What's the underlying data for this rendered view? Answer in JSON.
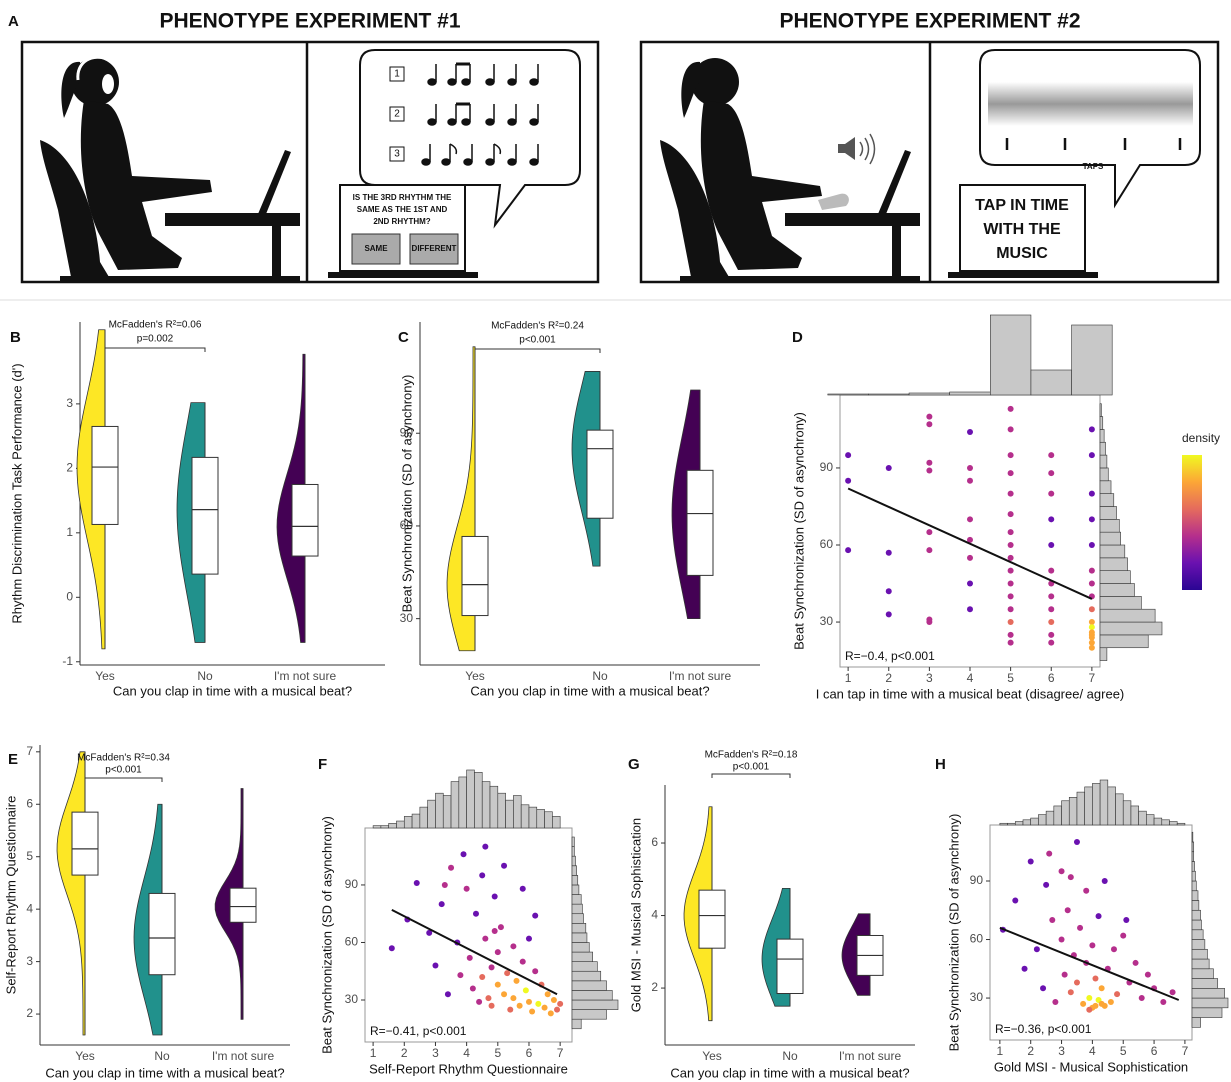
{
  "panel_a": {
    "panel": "A",
    "experiment_1": {
      "title": "PHENOTYPE EXPERIMENT #1",
      "rhythm_numbers": [
        "1",
        "2",
        "3"
      ],
      "question": [
        "IS THE 3RD RHYTHM THE",
        "SAME AS THE 1ST AND",
        "2ND RHYTHM?"
      ],
      "buttons": [
        "SAME",
        "DIFFERENT"
      ]
    },
    "experiment_2": {
      "title": "PHENOTYPE EXPERIMENT #2",
      "taps_label": "TAPS",
      "instruction": [
        "TAP IN TIME",
        "WITH THE",
        "MUSIC"
      ]
    }
  },
  "chart_data": [
    {
      "type": "raincloud",
      "panel": "B",
      "categories": [
        "Yes",
        "No",
        "I'm not sure"
      ],
      "colors": [
        "#fde725",
        "#21918c",
        "#440154"
      ],
      "ylabel": "Rhythm Discrimination Task Performance (d')",
      "xlabel": "Can you clap in time with a musical beat?",
      "annotations": [
        "McFadden's R²=0.06",
        "p=0.002"
      ],
      "ylim": [
        -1.05,
        4.27
      ],
      "yticks": [
        -1,
        0,
        1,
        2,
        3
      ],
      "boxes": [
        {
          "min": -0.8,
          "q1": 1.13,
          "median": 2.02,
          "q3": 2.65,
          "max": 4.15
        },
        {
          "min": -0.7,
          "q1": 0.36,
          "median": 1.36,
          "q3": 2.17,
          "max": 3.02
        },
        {
          "min": -0.7,
          "q1": 0.64,
          "median": 1.1,
          "q3": 1.75,
          "max": 3.77
        }
      ]
    },
    {
      "type": "raincloud",
      "panel": "C",
      "categories": [
        "Yes",
        "No",
        "I'm not sure"
      ],
      "colors": [
        "#fde725",
        "#21918c",
        "#440154"
      ],
      "ylabel": "Beat Synchronization (SD of asynchrony)",
      "xlabel": "Can you clap in time with a musical beat?",
      "annotations": [
        "McFadden's R²=0.24",
        "p<0.001"
      ],
      "ylim": [
        15,
        126
      ],
      "yticks": [
        30,
        60,
        90
      ],
      "boxes": [
        {
          "min": 19.6,
          "q1": 31,
          "median": 41,
          "q3": 56.6,
          "max": 118
        },
        {
          "min": 47,
          "q1": 62.5,
          "median": 85,
          "q3": 91,
          "max": 110
        },
        {
          "min": 30,
          "q1": 44,
          "median": 64,
          "q3": 78,
          "max": 104
        }
      ]
    },
    {
      "type": "scatter",
      "panel": "D",
      "ylabel": "Beat Synchronization (SD of asynchrony)",
      "xlabel": "I can tap in time with a musical beat (disagree/ agree)",
      "annotation": "R=−0.4, p<0.001",
      "legend_title": "density",
      "color_scale": [
        "#2a0593",
        "#6a11b0",
        "#b52f8c",
        "#e56b5d",
        "#fca636",
        "#f0f921"
      ],
      "xlim": [
        0.8,
        7.2
      ],
      "xticks": [
        1,
        2,
        3,
        4,
        5,
        6,
        7
      ],
      "ylim": [
        12.5,
        118.4
      ],
      "yticks": [
        30,
        60,
        90
      ],
      "x": [
        1,
        1,
        1,
        2,
        2,
        2,
        2,
        3,
        3,
        3,
        3,
        3,
        3,
        3,
        3,
        4,
        4,
        4,
        4,
        4,
        4,
        4,
        4,
        5,
        5,
        5,
        5,
        5,
        5,
        5,
        5,
        5,
        5,
        5,
        5,
        5,
        5,
        5,
        5,
        6,
        6,
        6,
        6,
        6,
        6,
        6,
        6,
        6,
        6,
        6,
        6,
        7,
        7,
        7,
        7,
        7,
        7,
        7,
        7,
        7,
        7,
        7,
        7,
        7,
        7,
        7,
        7
      ],
      "values": [
        95,
        85,
        58,
        90,
        57,
        42,
        33,
        110,
        107,
        92,
        89,
        65,
        58,
        31,
        30,
        104,
        90,
        85,
        70,
        62,
        55,
        45,
        35,
        113,
        105,
        95,
        88,
        80,
        72,
        65,
        60,
        55,
        50,
        45,
        40,
        35,
        30,
        25,
        22,
        95,
        88,
        80,
        70,
        60,
        50,
        45,
        40,
        35,
        30,
        25,
        22,
        105,
        95,
        80,
        70,
        60,
        50,
        45,
        40,
        35,
        30,
        28,
        26,
        25,
        24,
        22,
        20
      ],
      "fit": {
        "x": [
          1,
          7
        ],
        "y": [
          82,
          39
        ]
      },
      "x_hist": {
        "bins": [
          0.5,
          1.5,
          2.5,
          3.5,
          4.5,
          5.5,
          6.5,
          7.5
        ],
        "counts": [
          1,
          1,
          2,
          3,
          80,
          25,
          70
        ]
      },
      "y_hist": {
        "bins": [
          15,
          20,
          25,
          30,
          35,
          40,
          45,
          50,
          55,
          60,
          65,
          70,
          75,
          80,
          85,
          90,
          95,
          100,
          105,
          110,
          115
        ],
        "counts": [
          5,
          35,
          45,
          40,
          30,
          25,
          22,
          20,
          18,
          15,
          14,
          12,
          10,
          8,
          6,
          5,
          4,
          3,
          2,
          1
        ]
      }
    },
    {
      "type": "raincloud",
      "panel": "E",
      "categories": [
        "Yes",
        "No",
        "I'm not sure"
      ],
      "colors": [
        "#fde725",
        "#21918c",
        "#440154"
      ],
      "ylabel": "Self-Report Rhythm Questionnaire",
      "xlabel": "Can you clap in time with a musical beat?",
      "annotations": [
        "McFadden's R²=0.34",
        "p<0.001"
      ],
      "ylim": [
        1.41,
        7.13
      ],
      "yticks": [
        2,
        3,
        4,
        5,
        6,
        7
      ],
      "boxes": [
        {
          "min": 1.6,
          "q1": 4.65,
          "median": 5.15,
          "q3": 5.85,
          "max": 7.0
        },
        {
          "min": 1.6,
          "q1": 2.75,
          "median": 3.45,
          "q3": 4.3,
          "max": 6.0
        },
        {
          "min": 1.9,
          "q1": 3.75,
          "median": 4.05,
          "q3": 4.4,
          "max": 6.3
        }
      ]
    },
    {
      "type": "scatter",
      "panel": "F",
      "ylabel": "Beat Synchronization (SD of asynchrony)",
      "xlabel": "Self-Report Rhythm Questionnaire",
      "annotation": "R=−0.41, p<0.001",
      "color_scale": [
        "#2a0593",
        "#6a11b0",
        "#b52f8c",
        "#e56b5d",
        "#fca636",
        "#f0f921"
      ],
      "xlim": [
        0.74,
        7.38
      ],
      "xticks": [
        1,
        2,
        3,
        4,
        5,
        6,
        7
      ],
      "ylim": [
        8.1,
        119.7
      ],
      "yticks": [
        30,
        60,
        90
      ],
      "x": [
        1.6,
        2.1,
        2.4,
        2.8,
        3.0,
        3.2,
        3.4,
        3.5,
        3.7,
        3.8,
        3.9,
        4.0,
        4.1,
        4.2,
        4.3,
        4.4,
        4.5,
        4.5,
        4.6,
        4.7,
        4.8,
        4.8,
        4.9,
        5.0,
        5.0,
        5.1,
        5.2,
        5.3,
        5.4,
        5.5,
        5.5,
        5.6,
        5.7,
        5.8,
        5.9,
        6.0,
        6.0,
        6.1,
        6.2,
        6.3,
        6.4,
        6.5,
        6.6,
        6.7,
        6.8,
        6.9,
        7.0,
        4.6,
        5.2,
        5.8,
        3.3,
        4.9,
        6.2
      ],
      "values": [
        57,
        72,
        91,
        65,
        48,
        80,
        33,
        99,
        60,
        43,
        106,
        88,
        52,
        36,
        75,
        29,
        95,
        42,
        62,
        31,
        47,
        27,
        84,
        55,
        38,
        68,
        33,
        44,
        25,
        58,
        31,
        40,
        27,
        50,
        35,
        29,
        62,
        24,
        45,
        28,
        38,
        26,
        33,
        23,
        30,
        25,
        28,
        110,
        100,
        88,
        90,
        66,
        74
      ],
      "fit": {
        "x": [
          1.6,
          6.9
        ],
        "y": [
          77,
          33
        ]
      },
      "x_hist": {
        "bins": [
          1,
          1.25,
          1.5,
          1.75,
          2,
          2.25,
          2.5,
          2.75,
          3,
          3.25,
          3.5,
          3.75,
          4,
          4.25,
          4.5,
          4.75,
          5,
          5.25,
          5.5,
          5.75,
          6,
          6.25,
          6.5,
          6.75,
          7
        ],
        "counts": [
          1,
          1,
          2,
          3,
          5,
          6,
          9,
          12,
          15,
          14,
          20,
          22,
          25,
          24,
          20,
          18,
          15,
          12,
          14,
          10,
          9,
          8,
          7,
          5
        ]
      },
      "y_hist": {
        "bins": [
          15,
          20,
          25,
          30,
          35,
          40,
          45,
          50,
          55,
          60,
          65,
          70,
          75,
          80,
          85,
          90,
          95,
          100,
          105,
          110,
          115
        ],
        "counts": [
          8,
          30,
          40,
          35,
          30,
          25,
          22,
          18,
          15,
          13,
          12,
          10,
          9,
          8,
          6,
          5,
          4,
          3,
          2,
          2
        ]
      }
    },
    {
      "type": "raincloud",
      "panel": "G",
      "categories": [
        "Yes",
        "No",
        "I'm not sure"
      ],
      "colors": [
        "#fde725",
        "#21918c",
        "#440154"
      ],
      "ylabel": "Gold MSI - Musical Sophistication",
      "xlabel": "Can you clap in time with a musical beat?",
      "annotations": [
        "McFadden's R²=0.18",
        "p<0.001"
      ],
      "ylim": [
        0.43,
        7.6
      ],
      "yticks": [
        2,
        4,
        6
      ],
      "boxes": [
        {
          "min": 1.1,
          "q1": 3.1,
          "median": 4.0,
          "q3": 4.7,
          "max": 7.0
        },
        {
          "min": 1.5,
          "q1": 1.85,
          "median": 2.8,
          "q3": 3.35,
          "max": 4.75
        },
        {
          "min": 1.8,
          "q1": 2.35,
          "median": 2.9,
          "q3": 3.45,
          "max": 4.05
        }
      ]
    },
    {
      "type": "scatter",
      "panel": "H",
      "ylabel": "Beat Synchronization (SD of asynchrony)",
      "xlabel": "Gold MSI - Musical Sophistication",
      "annotation": "R=−0.36, p<0.001",
      "color_scale": [
        "#2a0593",
        "#6a11b0",
        "#b52f8c",
        "#e56b5d",
        "#fca636",
        "#f0f921"
      ],
      "xlim": [
        0.68,
        7.23
      ],
      "xticks": [
        1,
        2,
        3,
        4,
        5,
        6,
        7
      ],
      "ylim": [
        8.5,
        118.7
      ],
      "yticks": [
        30,
        60,
        90
      ],
      "x": [
        1.1,
        1.5,
        1.8,
        2.0,
        2.2,
        2.4,
        2.5,
        2.7,
        2.8,
        3.0,
        3.0,
        3.1,
        3.2,
        3.3,
        3.4,
        3.5,
        3.5,
        3.6,
        3.7,
        3.8,
        3.8,
        3.9,
        4.0,
        4.0,
        4.1,
        4.2,
        4.2,
        4.3,
        4.4,
        4.5,
        4.6,
        4.7,
        4.8,
        5.0,
        5.2,
        5.4,
        5.6,
        5.8,
        6.0,
        6.3,
        6.6,
        2.6,
        3.3,
        4.4,
        5.1,
        3.9,
        4.3,
        4.1
      ],
      "values": [
        65,
        80,
        45,
        100,
        55,
        35,
        88,
        70,
        28,
        60,
        95,
        42,
        75,
        33,
        52,
        110,
        38,
        66,
        27,
        48,
        85,
        30,
        57,
        25,
        40,
        29,
        72,
        35,
        26,
        45,
        28,
        55,
        32,
        62,
        38,
        48,
        30,
        42,
        35,
        28,
        33,
        104,
        92,
        90,
        70,
        24,
        27,
        26
      ],
      "fit": {
        "x": [
          1,
          6.8
        ],
        "y": [
          66,
          29
        ]
      },
      "x_hist": {
        "bins": [
          1,
          1.25,
          1.5,
          1.75,
          2,
          2.25,
          2.5,
          2.75,
          3,
          3.25,
          3.5,
          3.75,
          4,
          4.25,
          4.5,
          4.75,
          5,
          5.25,
          5.5,
          5.75,
          6,
          6.25,
          6.5,
          6.75,
          7
        ],
        "counts": [
          1,
          1,
          2,
          3,
          4,
          6,
          8,
          11,
          14,
          16,
          19,
          22,
          24,
          26,
          22,
          18,
          14,
          11,
          8,
          6,
          4,
          3,
          2,
          1
        ]
      },
      "y_hist": {
        "bins": [
          15,
          20,
          25,
          30,
          35,
          40,
          45,
          50,
          55,
          60,
          65,
          70,
          75,
          80,
          85,
          90,
          95,
          100,
          105,
          110,
          115
        ],
        "counts": [
          10,
          35,
          42,
          38,
          30,
          25,
          20,
          18,
          15,
          13,
          11,
          10,
          8,
          7,
          5,
          4,
          3,
          2,
          2,
          1
        ]
      }
    }
  ]
}
